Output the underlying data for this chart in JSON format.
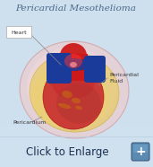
{
  "title": "Pericardial Mesothelioma",
  "title_fontsize": 7.5,
  "title_color": "#4a6a8a",
  "bg_color": "#cfe0ef",
  "click_text": "Click to Enlarge",
  "click_fontsize": 8.5,
  "click_color": "#1a3050",
  "label_heart": "Heart",
  "label_pericardial_fluid": "Pericardial\nFluid",
  "label_pericardium": "Pericardium",
  "label_fontsize": 4.5,
  "heart_red": "#cc1a1a",
  "heart_blue": "#1a3b99",
  "heart_red2": "#aa1010",
  "pericardium_fill": "#f0c8c8",
  "pericardium_fill2": "#e8b8b0",
  "pericardium_stroke": "#d09090",
  "fluid_fill": "#e8c840",
  "fluid_fill2": "#f0d060",
  "heart_body_fill": "#c83030",
  "heart_body_fill2": "#b82828",
  "plus_btn_color_top": "#5a8ab0",
  "plus_btn_color_bot": "#3a5a80",
  "plus_btn_size": 16,
  "line_color": "#888888",
  "line_width": 0.5
}
